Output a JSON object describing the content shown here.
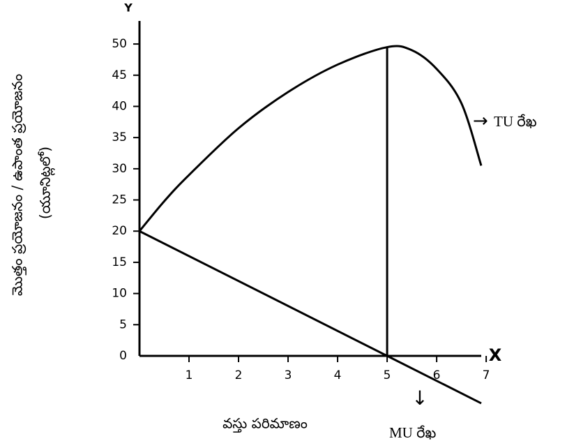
{
  "chart_data": {
    "type": "line",
    "x_axis_name": "X",
    "y_axis_name": "Y",
    "xlabel": "వస్తు పరిమాణం",
    "ylabel": [
      "మొత్తం ప్రయోజనం / ఉపాంత ప్రయోజనం",
      "(యూనిట్లలో)"
    ],
    "xlim": [
      0,
      6.9
    ],
    "ylim": [
      0,
      53.7
    ],
    "xticks": [
      1,
      2,
      3,
      4,
      5,
      6,
      7
    ],
    "yticks": [
      0,
      5,
      10,
      15,
      20,
      25,
      30,
      35,
      40,
      45,
      50
    ],
    "series": [
      {
        "name": "TU రేఖ",
        "color": "#000000",
        "x": [
          0,
          0.5,
          1,
          2,
          3,
          4,
          5,
          5.5,
          6,
          6.5,
          6.9
        ],
        "values": [
          20,
          24.8,
          29,
          36.5,
          42.3,
          46.7,
          49.5,
          49,
          46,
          40.5,
          30.5
        ]
      },
      {
        "name": "MU రేఖ",
        "color": "#000000",
        "x": [
          0,
          5,
          6.9
        ],
        "values": [
          20,
          0,
          -7.6
        ]
      }
    ]
  }
}
